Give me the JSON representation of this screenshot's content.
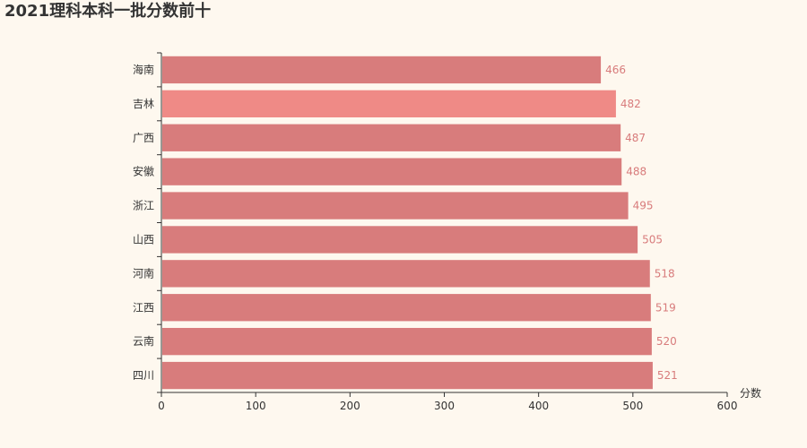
{
  "chart_data": {
    "type": "bar",
    "orientation": "horizontal",
    "title": "2021理科本科一批分数前十",
    "categories": [
      "四川",
      "云南",
      "江西",
      "河南",
      "山西",
      "浙江",
      "安徽",
      "广西",
      "吉林",
      "海南"
    ],
    "values": [
      521,
      520,
      519,
      518,
      505,
      495,
      488,
      487,
      482,
      466
    ],
    "xlabel": "分数",
    "ylabel": "",
    "xlim": [
      0,
      600
    ],
    "xticks": [
      0,
      100,
      200,
      300,
      400,
      500,
      600
    ],
    "grid": false,
    "colors": {
      "bar": "#d87c7c",
      "highlight_bar": "#ef8a86",
      "highlight_category": "吉林",
      "label": "#d87c7c",
      "axis": "#333333"
    }
  }
}
